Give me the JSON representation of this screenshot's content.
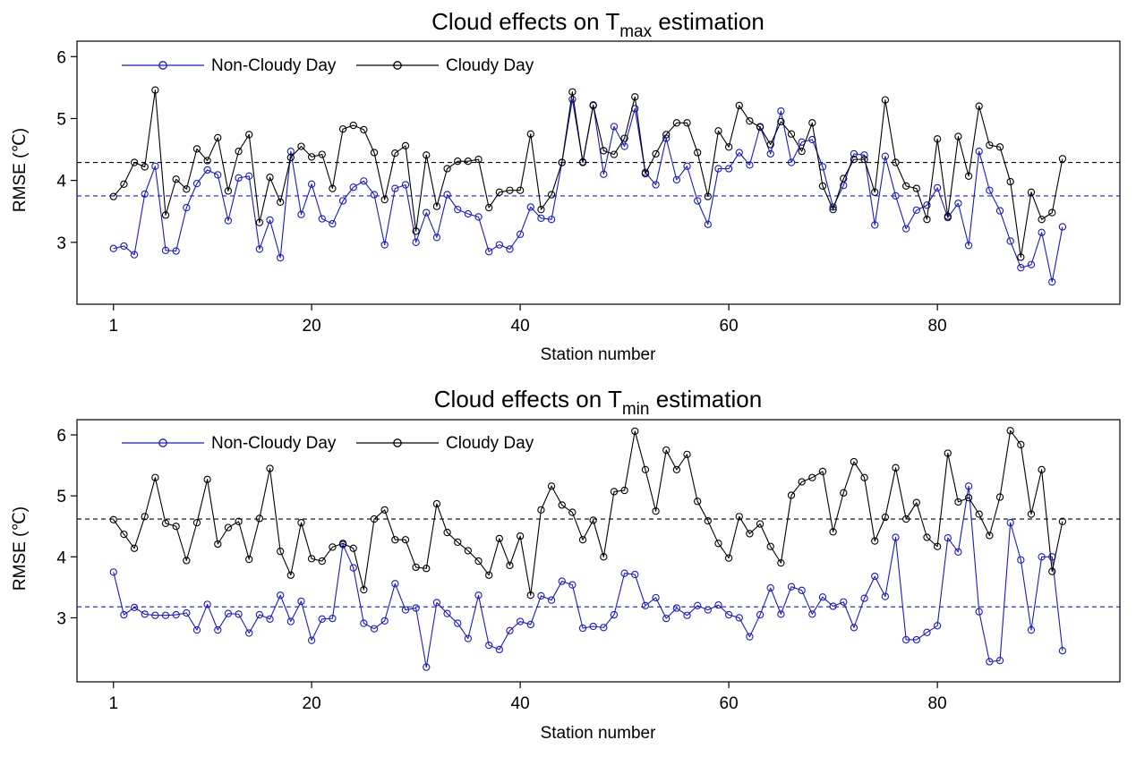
{
  "chart_data": [
    {
      "type": "line",
      "title": "Cloud effects on T",
      "title_subscript": "max",
      "title_suffix": " estimation",
      "xlabel": "Station number",
      "ylabel": "RMSE (℃)",
      "x": [
        1,
        2,
        3,
        4,
        5,
        6,
        7,
        8,
        9,
        10,
        11,
        12,
        13,
        14,
        15,
        16,
        17,
        18,
        19,
        20,
        21,
        22,
        23,
        24,
        25,
        26,
        27,
        28,
        29,
        30,
        31,
        32,
        33,
        34,
        35,
        36,
        37,
        38,
        39,
        40,
        41,
        42,
        43,
        44,
        45,
        46,
        47,
        48,
        49,
        50,
        51,
        52,
        53,
        54,
        55,
        56,
        57,
        58,
        59,
        60,
        61,
        62,
        63,
        64,
        65,
        66,
        67,
        68,
        69,
        70,
        71,
        72,
        73,
        74,
        75,
        76,
        77,
        78,
        79,
        80,
        81,
        82,
        83,
        84,
        85,
        86,
        87,
        88,
        89,
        90,
        91,
        92
      ],
      "xlim": [
        -2.5,
        97.5
      ],
      "ylim": [
        2,
        6.25
      ],
      "x_ticks": [
        1,
        20,
        40,
        60,
        80
      ],
      "y_ticks": [
        3,
        4,
        5,
        6
      ],
      "legend_position": "top-left",
      "series": [
        {
          "name": "Non-Cloudy Day",
          "color": "#1c1cb4",
          "marker": "open-circle",
          "mean": 3.75,
          "values": [
            2.9,
            2.94,
            2.8,
            3.78,
            4.23,
            2.87,
            2.86,
            3.56,
            3.95,
            4.17,
            4.09,
            3.35,
            4.04,
            4.07,
            2.89,
            3.36,
            2.75,
            4.47,
            3.45,
            3.94,
            3.38,
            3.3,
            3.67,
            3.89,
            3.99,
            3.77,
            2.96,
            3.87,
            3.93,
            3.0,
            3.48,
            3.08,
            3.77,
            3.53,
            3.46,
            3.41,
            2.85,
            2.96,
            2.89,
            3.13,
            3.57,
            3.39,
            3.37,
            4.29,
            5.31,
            4.3,
            5.22,
            4.1,
            4.87,
            4.55,
            5.16,
            4.13,
            3.93,
            4.68,
            4.01,
            4.23,
            3.67,
            3.29,
            4.19,
            4.19,
            4.45,
            4.25,
            4.87,
            4.43,
            5.12,
            4.29,
            4.62,
            4.66,
            4.22,
            3.57,
            3.92,
            4.43,
            4.41,
            3.28,
            4.39,
            3.75,
            3.22,
            3.52,
            3.6,
            3.88,
            3.4,
            3.63,
            2.95,
            4.47,
            3.84,
            3.51,
            3.02,
            2.59,
            2.64,
            3.16,
            2.36,
            3.25
          ]
        },
        {
          "name": "Cloudy Day",
          "color": "#000000",
          "marker": "open-circle",
          "mean": 4.29,
          "values": [
            3.74,
            3.94,
            4.29,
            4.22,
            5.46,
            3.44,
            4.02,
            3.86,
            4.51,
            4.32,
            4.69,
            3.83,
            4.47,
            4.74,
            3.32,
            4.05,
            3.65,
            4.37,
            4.55,
            4.38,
            4.42,
            3.87,
            4.83,
            4.89,
            4.82,
            4.45,
            3.69,
            4.44,
            4.56,
            3.18,
            4.41,
            3.58,
            4.19,
            4.31,
            4.31,
            4.34,
            3.56,
            3.81,
            3.84,
            3.84,
            4.75,
            3.53,
            3.77,
            4.29,
            5.43,
            4.29,
            5.21,
            4.48,
            4.42,
            4.68,
            5.35,
            4.11,
            4.43,
            4.74,
            4.93,
            4.93,
            4.45,
            3.74,
            4.8,
            4.54,
            5.21,
            4.96,
            4.86,
            4.58,
            4.95,
            4.75,
            4.47,
            4.93,
            3.91,
            3.53,
            4.03,
            4.34,
            4.34,
            3.81,
            5.3,
            4.29,
            3.91,
            3.87,
            3.37,
            4.67,
            3.42,
            4.71,
            4.07,
            5.2,
            4.57,
            4.54,
            3.98,
            2.76,
            3.81,
            3.37,
            3.48,
            4.35
          ]
        }
      ]
    },
    {
      "type": "line",
      "title": "Cloud effects on T",
      "title_subscript": "min",
      "title_suffix": " estimation",
      "xlabel": "Station number",
      "ylabel": "RMSE (℃)",
      "x": [
        1,
        2,
        3,
        4,
        5,
        6,
        7,
        8,
        9,
        10,
        11,
        12,
        13,
        14,
        15,
        16,
        17,
        18,
        19,
        20,
        21,
        22,
        23,
        24,
        25,
        26,
        27,
        28,
        29,
        30,
        31,
        32,
        33,
        34,
        35,
        36,
        37,
        38,
        39,
        40,
        41,
        42,
        43,
        44,
        45,
        46,
        47,
        48,
        49,
        50,
        51,
        52,
        53,
        54,
        55,
        56,
        57,
        58,
        59,
        60,
        61,
        62,
        63,
        64,
        65,
        66,
        67,
        68,
        69,
        70,
        71,
        72,
        73,
        74,
        75,
        76,
        77,
        78,
        79,
        80,
        81,
        82,
        83,
        84,
        85,
        86,
        87,
        88,
        89,
        90,
        91,
        92
      ],
      "xlim": [
        -2.5,
        97.5
      ],
      "ylim": [
        1.95,
        6.25
      ],
      "x_ticks": [
        1,
        20,
        40,
        60,
        80
      ],
      "y_ticks": [
        3,
        4,
        5,
        6
      ],
      "legend_position": "top-left",
      "series": [
        {
          "name": "Non-Cloudy Day",
          "color": "#1c1cb4",
          "marker": "open-circle",
          "mean": 3.18,
          "values": [
            3.75,
            3.05,
            3.17,
            3.06,
            3.04,
            3.04,
            3.05,
            3.08,
            2.8,
            3.22,
            2.8,
            3.07,
            3.06,
            2.75,
            3.05,
            2.98,
            3.37,
            2.94,
            3.27,
            2.63,
            2.98,
            2.99,
            4.2,
            3.82,
            2.91,
            2.82,
            2.95,
            3.56,
            3.13,
            3.16,
            2.19,
            3.25,
            3.07,
            2.91,
            2.66,
            3.37,
            2.55,
            2.48,
            2.79,
            2.94,
            2.89,
            3.36,
            3.29,
            3.6,
            3.54,
            2.83,
            2.86,
            2.84,
            3.05,
            3.73,
            3.71,
            3.2,
            3.33,
            2.99,
            3.16,
            3.04,
            3.2,
            3.13,
            3.21,
            3.05,
            3.0,
            2.69,
            3.05,
            3.49,
            3.06,
            3.51,
            3.45,
            3.06,
            3.34,
            3.19,
            3.26,
            2.84,
            3.32,
            3.68,
            3.35,
            4.32,
            2.64,
            2.64,
            2.76,
            2.87,
            4.31,
            4.08,
            5.16,
            3.1,
            2.28,
            2.3,
            4.56,
            3.95,
            2.8,
            4.0,
            4.0,
            2.46
          ]
        },
        {
          "name": "Cloudy Day",
          "color": "#000000",
          "marker": "open-circle",
          "mean": 4.62,
          "values": [
            4.61,
            4.37,
            4.14,
            4.66,
            5.3,
            4.55,
            4.5,
            3.94,
            4.56,
            5.27,
            4.21,
            4.48,
            4.58,
            3.96,
            4.63,
            5.45,
            4.09,
            3.7,
            4.56,
            3.97,
            3.93,
            4.16,
            4.22,
            4.14,
            3.46,
            4.62,
            4.77,
            4.28,
            4.28,
            3.83,
            3.81,
            4.87,
            4.4,
            4.24,
            4.1,
            3.93,
            3.7,
            4.3,
            3.86,
            4.34,
            3.37,
            4.77,
            5.16,
            4.85,
            4.73,
            4.28,
            4.6,
            4.0,
            5.07,
            5.09,
            6.06,
            5.43,
            4.75,
            5.75,
            5.43,
            5.68,
            4.91,
            4.59,
            4.22,
            3.98,
            4.66,
            4.38,
            4.54,
            4.17,
            3.9,
            5.01,
            5.23,
            5.3,
            5.4,
            4.41,
            5.05,
            5.56,
            5.3,
            4.26,
            4.65,
            5.46,
            4.62,
            4.89,
            4.32,
            4.17,
            5.7,
            4.9,
            4.97,
            4.7,
            4.35,
            4.98,
            6.07,
            5.84,
            4.7,
            5.43,
            3.76,
            4.58
          ]
        }
      ]
    }
  ]
}
